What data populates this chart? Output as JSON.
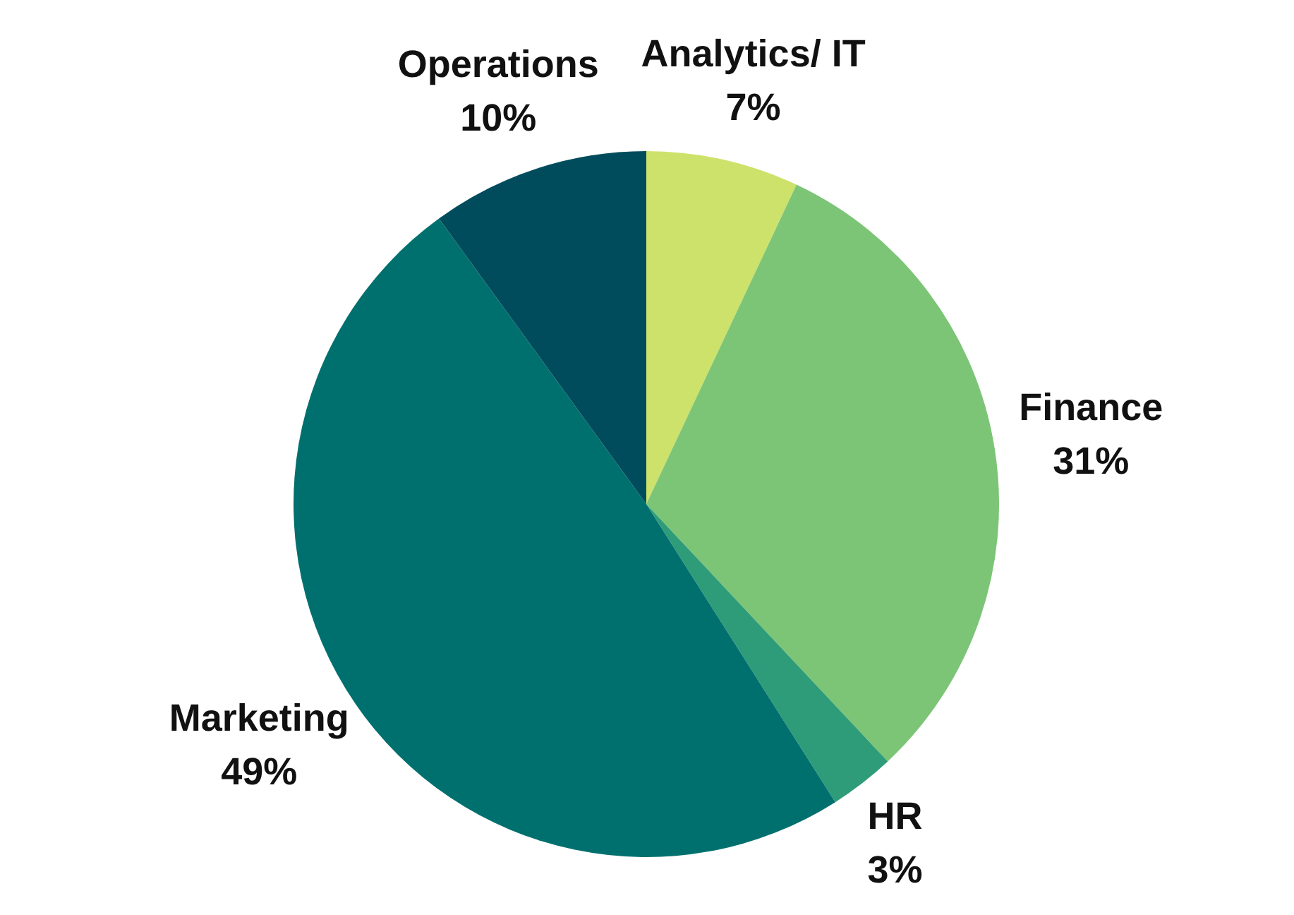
{
  "chart_data": {
    "type": "pie",
    "categories": [
      "Analytics/ IT",
      "Finance",
      "HR",
      "Marketing",
      "Operations"
    ],
    "values": [
      7,
      31,
      3,
      49,
      10
    ],
    "colors": [
      "#cde26a",
      "#7cc576",
      "#2e9c78",
      "#00706e",
      "#004c5c"
    ],
    "value_labels": [
      "7%",
      "31%",
      "3%",
      "49%",
      "10%"
    ]
  }
}
